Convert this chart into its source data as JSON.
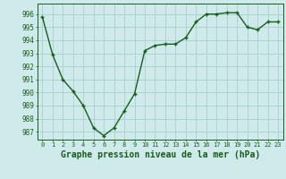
{
  "x": [
    0,
    1,
    2,
    3,
    4,
    5,
    6,
    7,
    8,
    9,
    10,
    11,
    12,
    13,
    14,
    15,
    16,
    17,
    18,
    19,
    20,
    21,
    22,
    23
  ],
  "y": [
    995.8,
    992.9,
    991.0,
    990.1,
    989.0,
    987.3,
    986.7,
    987.3,
    988.6,
    989.9,
    993.2,
    993.6,
    993.7,
    993.7,
    994.2,
    995.4,
    996.0,
    996.0,
    996.1,
    996.1,
    995.0,
    994.8,
    995.4,
    995.4
  ],
  "line_color": "#1a5c1a",
  "marker": "+",
  "marker_size": 3,
  "marker_lw": 1.0,
  "bg_color": "#ceeaea",
  "grid_color": "#aacece",
  "xlabel": "Graphe pression niveau de la mer (hPa)",
  "xlabel_fontsize": 7,
  "ylabel_ticks": [
    987,
    988,
    989,
    990,
    991,
    992,
    993,
    994,
    995,
    996
  ],
  "xtick_labels": [
    "0",
    "1",
    "2",
    "3",
    "4",
    "5",
    "6",
    "7",
    "8",
    "9",
    "10",
    "11",
    "12",
    "13",
    "14",
    "15",
    "16",
    "17",
    "18",
    "19",
    "20",
    "21",
    "22",
    "23"
  ],
  "ylim": [
    986.4,
    996.8
  ],
  "xlim": [
    -0.5,
    23.5
  ],
  "ytick_fontsize": 5.5,
  "xtick_fontsize": 5.0,
  "line_width": 1.0
}
